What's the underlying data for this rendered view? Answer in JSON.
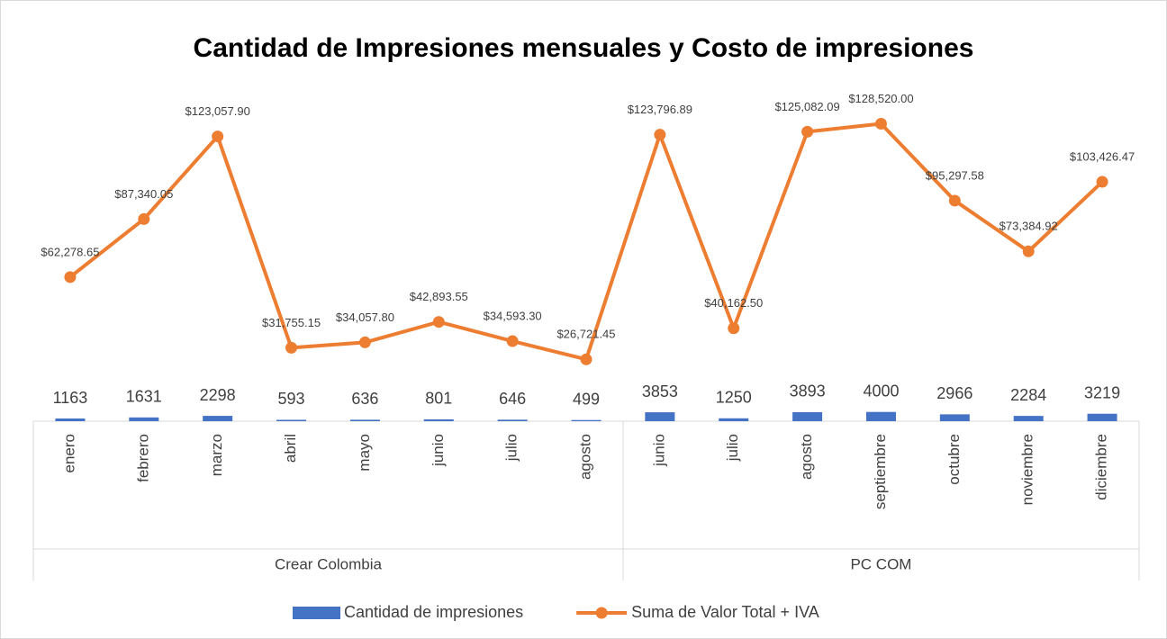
{
  "chart_data": {
    "type": "combo",
    "title": "Cantidad de Impresiones mensuales y Costo de impresiones",
    "categories": [
      "enero",
      "febrero",
      "marzo",
      "abril",
      "mayo",
      "junio",
      "julio",
      "agosto",
      "junio",
      "julio",
      "agosto",
      "septiembre",
      "octubre",
      "noviembre",
      "diciembre"
    ],
    "category_groups": [
      {
        "name": "Crear Colombia",
        "count": 8
      },
      {
        "name": "PC COM",
        "count": 7
      }
    ],
    "ylim": [
      0,
      140000
    ],
    "series": [
      {
        "name": "Cantidad de impresiones",
        "type": "bar",
        "color": "#4472c4",
        "values": [
          1163,
          1631,
          2298,
          593,
          636,
          801,
          646,
          499,
          3853,
          1250,
          3893,
          4000,
          2966,
          2284,
          3219
        ]
      },
      {
        "name": "Suma de Valor Total + IVA",
        "type": "line",
        "color": "#ed7d31",
        "values": [
          62278.65,
          87340.05,
          123057.9,
          31755.15,
          34057.8,
          42893.55,
          34593.3,
          26721.45,
          123796.89,
          40162.5,
          125082.09,
          128520.0,
          95297.58,
          73384.92,
          103426.47
        ],
        "value_labels": [
          "$62,278.65",
          "$87,340.05",
          "$123,057.90",
          "$31,755.15",
          "$34,057.80",
          "$42,893.55",
          "$34,593.30",
          "$26,721.45",
          "$123,796.89",
          "$40,162.50",
          "$125,082.09",
          "$128,520.00",
          "$95,297.58",
          "$73,384.92",
          "$103,426.47"
        ]
      }
    ],
    "legend": "bottom"
  }
}
